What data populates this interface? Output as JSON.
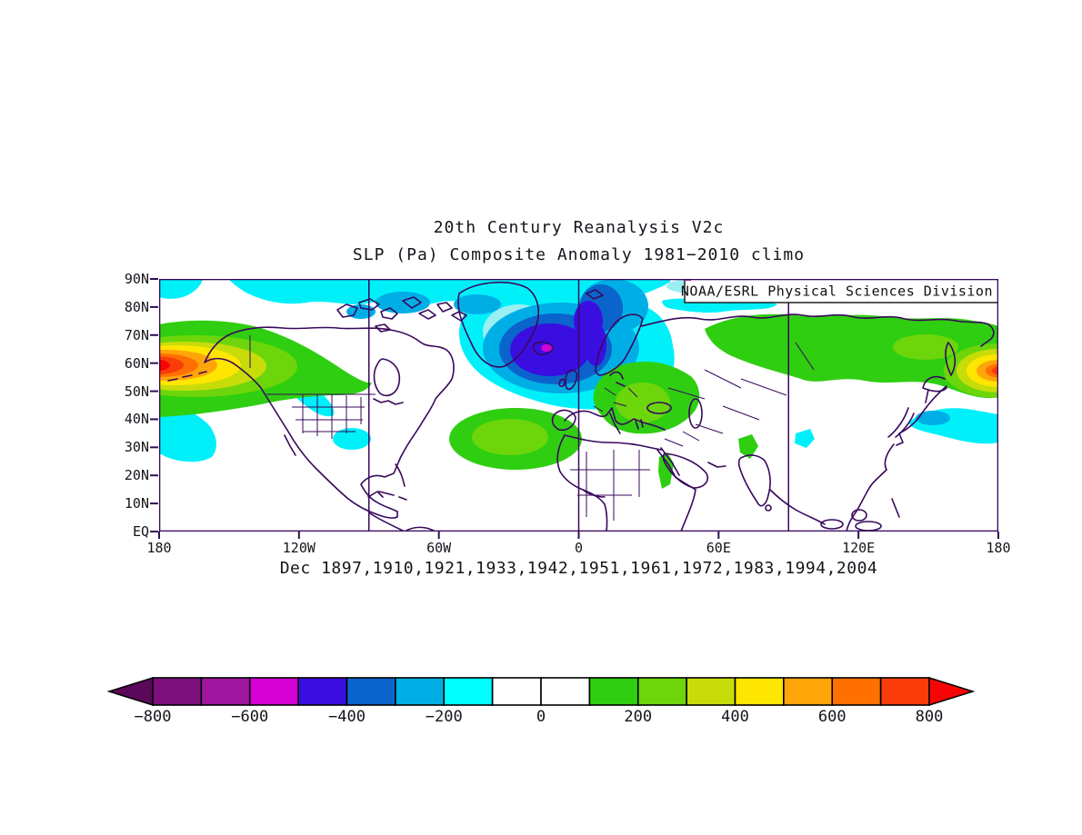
{
  "header": {
    "title": "20th Century Reanalysis V2c",
    "subtitle": "SLP (Pa) Composite Anomaly 1981−2010 climo"
  },
  "map": {
    "credit": "NOAA/ESRL Physical Sciences Division",
    "frame_color": "#35085a",
    "coastline_color": "#38085c",
    "meridian_lines": [
      "90W",
      "0",
      "90E"
    ]
  },
  "footer": {
    "date_label": "Dec 1897,1910,1921,1933,1942,1951,1961,1972,1983,1994,2004"
  },
  "axes": {
    "lat_labels": [
      "90N",
      "80N",
      "70N",
      "60N",
      "50N",
      "40N",
      "30N",
      "20N",
      "10N",
      "EQ"
    ],
    "lon_labels": [
      "180",
      "120W",
      "60W",
      "0",
      "60E",
      "120E",
      "180"
    ]
  },
  "colorbar": {
    "orientation": "horizontal",
    "tick_labels": [
      "−800",
      "−600",
      "−400",
      "−200",
      "0",
      "200",
      "400",
      "600",
      "800"
    ],
    "left_arrow_color": "#5a085a",
    "right_arrow_color": "#f50505"
  },
  "chart_data": {
    "type": "heatmap",
    "title": "20th Century Reanalysis V2c",
    "subtitle": "SLP (Pa) Composite Anomaly 1981−2010 climo",
    "variable": "Sea level pressure composite anomaly",
    "units": "Pa",
    "climatology": "1981−2010",
    "season": "Dec",
    "composite_years": [
      1897,
      1910,
      1921,
      1933,
      1942,
      1951,
      1961,
      1972,
      1983,
      1994,
      2004
    ],
    "projection": "cylindrical equidistant",
    "lon_range": [
      -180,
      180
    ],
    "lat_range": [
      0,
      90
    ],
    "xticks": [
      "180",
      "120W",
      "60W",
      "0",
      "60E",
      "120E",
      "180"
    ],
    "yticks": [
      "EQ",
      "10N",
      "20N",
      "30N",
      "40N",
      "50N",
      "60N",
      "70N",
      "80N",
      "90N"
    ],
    "grid": "meridians at 90W, 0 and 90E",
    "legend_position": "bottom",
    "contour_interval_pa": 100,
    "colorbar_range": [
      -800,
      800
    ],
    "levels": [
      {
        "from": -800,
        "to": -700,
        "color": "#7d0f7d"
      },
      {
        "from": -700,
        "to": -600,
        "color": "#a016a0"
      },
      {
        "from": -600,
        "to": -500,
        "color": "#d400d4"
      },
      {
        "from": -500,
        "to": -400,
        "color": "#3a0ee0"
      },
      {
        "from": -400,
        "to": -300,
        "color": "#0a64cc"
      },
      {
        "from": -300,
        "to": -200,
        "color": "#00aee6"
      },
      {
        "from": -200,
        "to": -100,
        "color": "#00ffff"
      },
      {
        "from": -100,
        "to": 0,
        "color": "#ffffff"
      },
      {
        "from": 0,
        "to": 100,
        "color": "#ffffff"
      },
      {
        "from": 100,
        "to": 200,
        "color": "#2fce11"
      },
      {
        "from": 200,
        "to": 300,
        "color": "#6cd60a"
      },
      {
        "from": 300,
        "to": 400,
        "color": "#c8dc0a"
      },
      {
        "from": 400,
        "to": 500,
        "color": "#ffe600"
      },
      {
        "from": 500,
        "to": 600,
        "color": "#ffa50a"
      },
      {
        "from": 600,
        "to": 700,
        "color": "#ff7000"
      },
      {
        "from": 700,
        "to": 800,
        "color": "#fa3c0a"
      }
    ],
    "below_range_color": "#5a085a",
    "above_range_color": "#f50505",
    "anomaly_centers": [
      {
        "feature": "North Pacific / Alaska positive center",
        "lon": -178,
        "lat": 59,
        "peak_pa": 800
      },
      {
        "feature": "Iceland / North Atlantic negative center",
        "lon": -20,
        "lat": 64,
        "peak_pa": -550
      },
      {
        "feature": "Northern Eurasia positive band",
        "lon_span": [
          40,
          180
        ],
        "lat_span": [
          50,
          75
        ],
        "peak_pa": 300
      },
      {
        "feature": "East Siberia positive center at date line",
        "lon": 178,
        "lat": 58,
        "peak_pa": 700
      },
      {
        "feature": "Subtropical Atlantic positive cell",
        "lon": -27,
        "lat": 33,
        "peak_pa": 300
      },
      {
        "feature": "Eastern Europe positive cell",
        "lon": 25,
        "lat": 47,
        "peak_pa": 300
      },
      {
        "feature": "Arctic negative band",
        "lon_span": [
          -150,
          60
        ],
        "lat_span": [
          80,
          90
        ],
        "peak_pa": -200
      },
      {
        "feature": "Western North Pacific negative band",
        "lon_span": [
          140,
          180
        ],
        "lat_span": [
          33,
          42
        ],
        "peak_pa": -300
      },
      {
        "feature": "Central Pacific subtropical negative (west edge)",
        "lon": -175,
        "lat": 32,
        "peak_pa": -200
      },
      {
        "feature": "Western US negative patches",
        "lon": -108,
        "lat": 42,
        "peak_pa": -200
      }
    ]
  }
}
